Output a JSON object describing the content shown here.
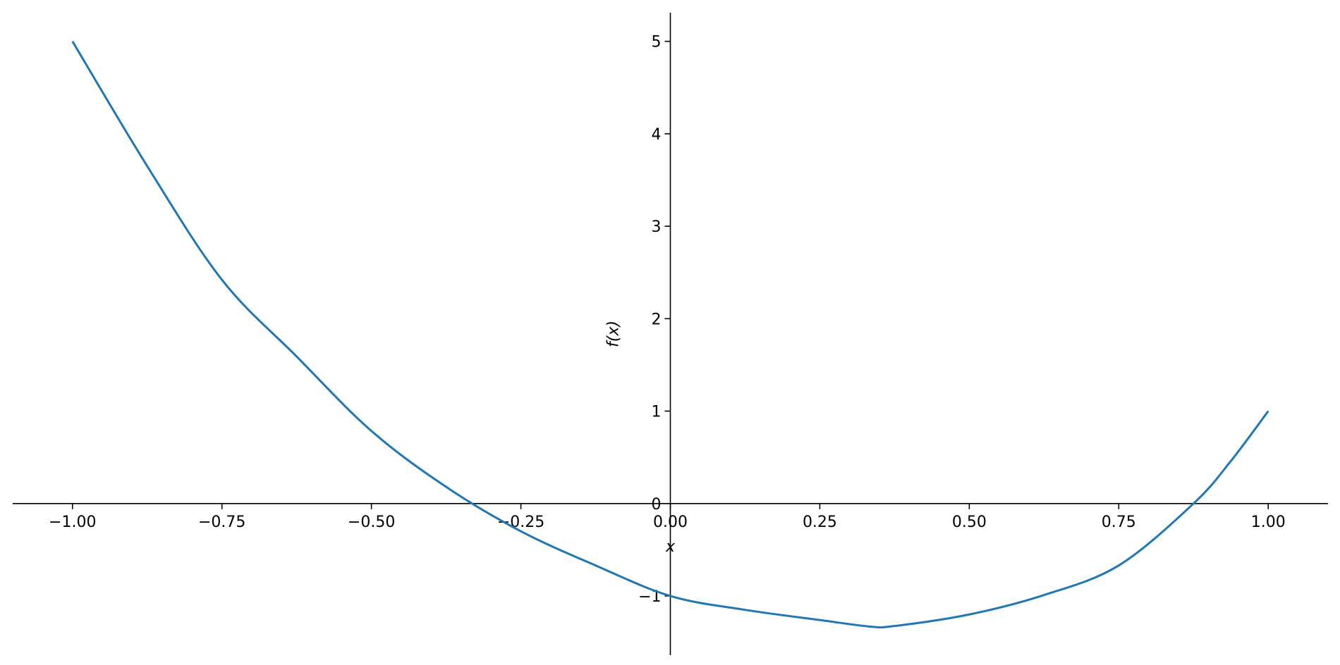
{
  "chart_data": {
    "type": "line",
    "title": "",
    "xlabel": "x",
    "ylabel": "f(x)",
    "xlim": [
      -1.1,
      1.1
    ],
    "ylim": [
      -1.64,
      5.31
    ],
    "grid": false,
    "spines": "centered at origin",
    "line_color": "#1f77b4",
    "xticks": [
      -1.0,
      -0.75,
      -0.5,
      -0.25,
      0.0,
      0.25,
      0.5,
      0.75,
      1.0
    ],
    "xtick_labels": [
      "−1.00",
      "−0.75",
      "−0.50",
      "−0.25",
      "0.00",
      "0.25",
      "0.50",
      "0.75",
      "1.00"
    ],
    "yticks": [
      -1,
      0,
      1,
      2,
      3,
      4,
      5
    ],
    "ytick_labels": [
      "−1",
      "0",
      "1",
      "2",
      "3",
      "4",
      "5"
    ],
    "series": [
      {
        "x": [
          -1,
          -0.875,
          -0.75,
          -0.625,
          -0.5,
          -0.375,
          -0.25,
          -0.125,
          0,
          0.125,
          0.25,
          0.333,
          0.375,
          0.5,
          0.625,
          0.75,
          0.875,
          0.9375,
          1
        ],
        "y": [
          5,
          3.65,
          2.42,
          1.59,
          0.785,
          0.18,
          -0.3,
          -0.67,
          -1,
          -1.15,
          -1.26,
          -1.33,
          -1.325,
          -1.2,
          -0.99,
          -0.67,
          0,
          0.46,
          1
        ]
      }
    ]
  }
}
